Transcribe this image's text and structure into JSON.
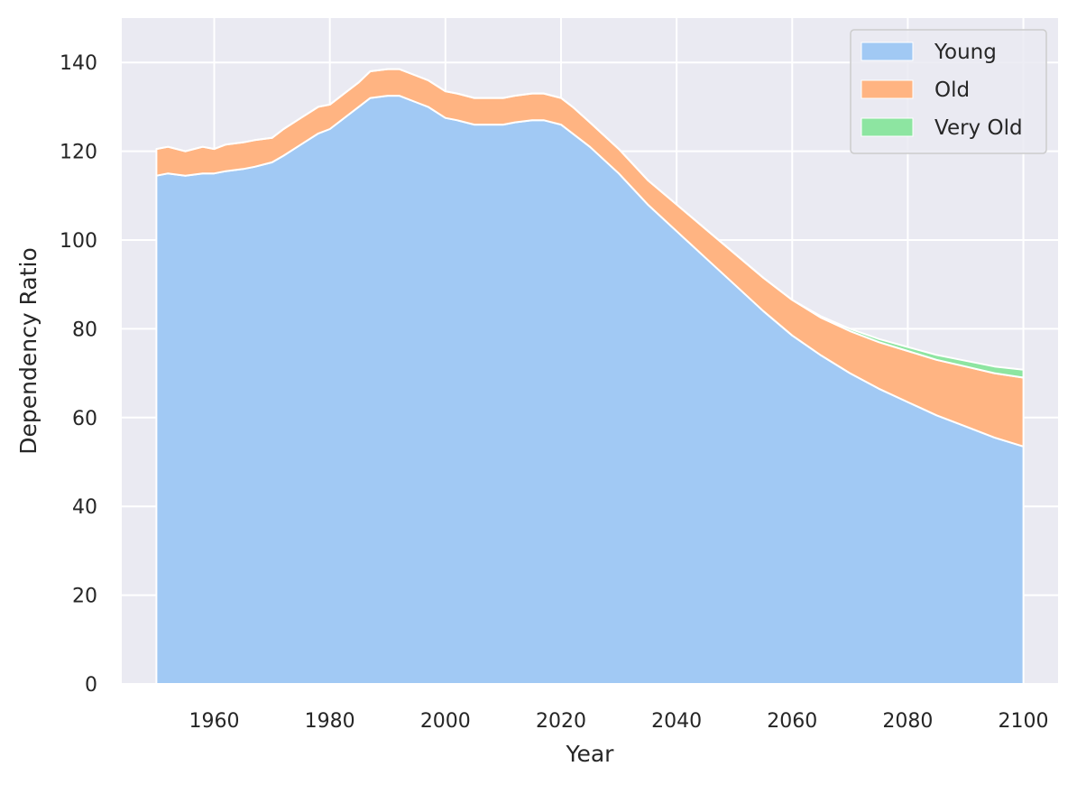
{
  "chart_data": {
    "type": "area",
    "stacked": true,
    "xlabel": "Year",
    "ylabel": "Dependency Ratio",
    "xlim": [
      1944,
      2106
    ],
    "ylim": [
      0,
      150
    ],
    "xticks": [
      1960,
      1980,
      2000,
      2020,
      2040,
      2060,
      2080,
      2100
    ],
    "yticks": [
      0,
      20,
      40,
      60,
      80,
      100,
      120,
      140
    ],
    "grid": true,
    "legend_position": "top-right",
    "x": [
      1950,
      1952,
      1955,
      1958,
      1960,
      1962,
      1965,
      1967,
      1970,
      1972,
      1975,
      1978,
      1980,
      1982,
      1985,
      1987,
      1990,
      1992,
      1995,
      1997,
      2000,
      2002,
      2005,
      2007,
      2010,
      2012,
      2015,
      2017,
      2020,
      2022,
      2025,
      2030,
      2035,
      2040,
      2045,
      2050,
      2055,
      2060,
      2065,
      2070,
      2075,
      2080,
      2085,
      2090,
      2095,
      2100
    ],
    "series": [
      {
        "name": "Young",
        "color": "#a1c9f4",
        "values": [
          114.5,
          115,
          114.5,
          115,
          115,
          115.5,
          116,
          116.5,
          117.5,
          119,
          121.5,
          124,
          125,
          127,
          130,
          132,
          132.5,
          132.5,
          131,
          130,
          127.5,
          127,
          126,
          126,
          126,
          126.5,
          127,
          127,
          126,
          124,
          121,
          115,
          108,
          102,
          96,
          90,
          84,
          78.5,
          74,
          70,
          66.5,
          63.5,
          60.5,
          58,
          55.5,
          53.5
        ]
      },
      {
        "name": "Old",
        "color": "#ffb482",
        "values": [
          6,
          6,
          5.5,
          6,
          5.5,
          6,
          6,
          6,
          5.5,
          6,
          6,
          6,
          5.5,
          5.5,
          5.5,
          6,
          6,
          6,
          6,
          6,
          6,
          6,
          6,
          6,
          6,
          6,
          6,
          6,
          6,
          6,
          5.5,
          5.5,
          5.5,
          6,
          6.5,
          7,
          7.5,
          8,
          8.5,
          9.5,
          10.5,
          11.5,
          12.5,
          13.5,
          14.5,
          15.5
        ]
      },
      {
        "name": "Very Old",
        "color": "#8de5a1",
        "values": [
          0,
          0,
          0,
          0,
          0,
          0,
          0,
          0,
          0,
          0,
          0,
          0,
          0,
          0,
          0,
          0,
          0,
          0,
          0,
          0,
          0,
          0,
          0,
          0,
          0,
          0,
          0,
          0,
          0,
          0,
          0,
          0,
          0,
          0,
          0,
          0,
          0,
          0,
          0.3,
          0.5,
          0.7,
          0.9,
          1.1,
          1.3,
          1.5,
          1.8
        ]
      }
    ]
  }
}
